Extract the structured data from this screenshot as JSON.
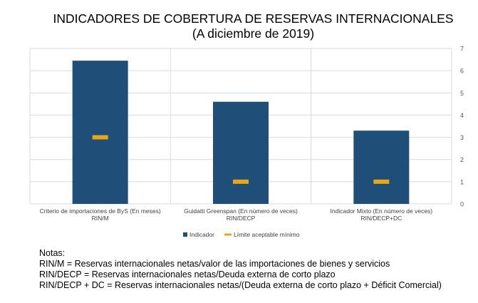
{
  "chart_data": {
    "type": "bar",
    "title": "INDICADORES DE COBERTURA DE RESERVAS INTERNACIONALES",
    "subtitle": "(A diciembre de 2019)",
    "categories": [
      [
        "Criterio de importaciones de ByS (En meses)",
        "RIN/M"
      ],
      [
        "Guidatti Greenspan (En número de veces)",
        "RIN/DECP"
      ],
      [
        "Indicador Mixto (En número de veces)",
        "RIN/DECP+DC"
      ]
    ],
    "series": [
      {
        "name": "Indicador",
        "type": "bar",
        "color": "#1f4e79",
        "values": [
          6.45,
          4.6,
          3.3
        ]
      },
      {
        "name": "Límite aceptable mínimo",
        "type": "marker",
        "color": "#e8a717",
        "values": [
          3,
          1,
          1
        ]
      }
    ],
    "ylim": [
      0,
      7
    ],
    "yticks": [
      "0",
      "1",
      "2",
      "3",
      "4",
      "5",
      "6",
      "7"
    ],
    "axis_position": "right",
    "grid": true,
    "legend_position": "bottom"
  },
  "notes": {
    "heading": "Notas:",
    "lines": [
      "RIN/M = Reservas internacionales netas/valor de las importaciones de bienes y servicios",
      "RIN/DECP = Reservas internacionales netas/Deuda externa de corto plazo",
      "RIN/DECP + DC = Reservas internacionales netas/(Deuda externa de corto plazo + Déficit Comercial)"
    ]
  }
}
